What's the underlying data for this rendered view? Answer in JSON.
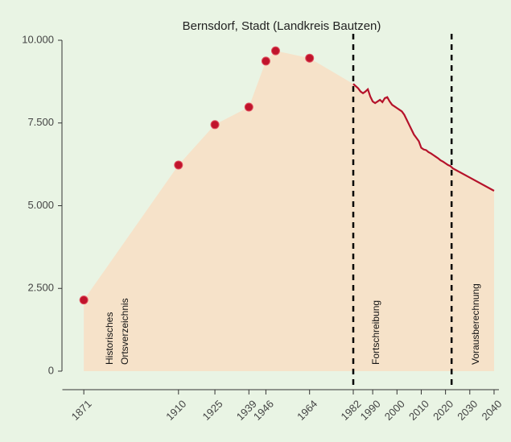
{
  "chart_data": {
    "type": "area",
    "title": "Bernsdorf, Stadt (Landkreis Bautzen)",
    "series": [
      {
        "mode": "markers",
        "color": "#c0142c",
        "x": [
          1871,
          1910,
          1925,
          1939,
          1946,
          1950,
          1964
        ],
        "values": [
          2150,
          6230,
          7450,
          7980,
          9370,
          9680,
          9460
        ]
      },
      {
        "mode": "line",
        "color": "#b5122a",
        "x": [
          1982,
          1984,
          1985,
          1986,
          1987,
          1988,
          1989,
          1990,
          1991,
          1992,
          1993,
          1994,
          1995,
          1996,
          1997,
          1998,
          1999,
          2000,
          2001,
          2002,
          2003,
          2004,
          2005,
          2006,
          2007,
          2008,
          2009,
          2010,
          2011,
          2012,
          2013,
          2014,
          2015,
          2016,
          2017,
          2018,
          2019,
          2020,
          2021,
          2022,
          2023,
          2030,
          2040
        ],
        "values": [
          8680,
          8550,
          8450,
          8400,
          8450,
          8520,
          8300,
          8150,
          8100,
          8150,
          8200,
          8130,
          8250,
          8280,
          8150,
          8050,
          8000,
          7950,
          7900,
          7850,
          7750,
          7600,
          7450,
          7300,
          7150,
          7050,
          6950,
          6750,
          6700,
          6680,
          6620,
          6580,
          6530,
          6480,
          6430,
          6370,
          6330,
          6280,
          6230,
          6200,
          6130,
          5850,
          5450
        ]
      }
    ],
    "area_color": "#f6e2c9",
    "vlines": [
      1982,
      2022.5
    ],
    "annotations": [
      "Historisches",
      "Ortsverzeichnis",
      "Fortschreibung",
      "Vorausberechnung"
    ],
    "xlim": [
      1862,
      2042
    ],
    "xticks": [
      1871,
      1910,
      1925,
      1939,
      1946,
      1964,
      1982,
      1990,
      2000,
      2010,
      2020,
      2030,
      2040
    ],
    "ylim": [
      0,
      10000
    ],
    "yticks": [
      0,
      {
        "value": 2500,
        "label": "2.500"
      },
      {
        "value": 5000,
        "label": "5.000"
      },
      {
        "value": 7500,
        "label": "7.500"
      },
      {
        "value": 10000,
        "label": "10.000"
      }
    ]
  }
}
